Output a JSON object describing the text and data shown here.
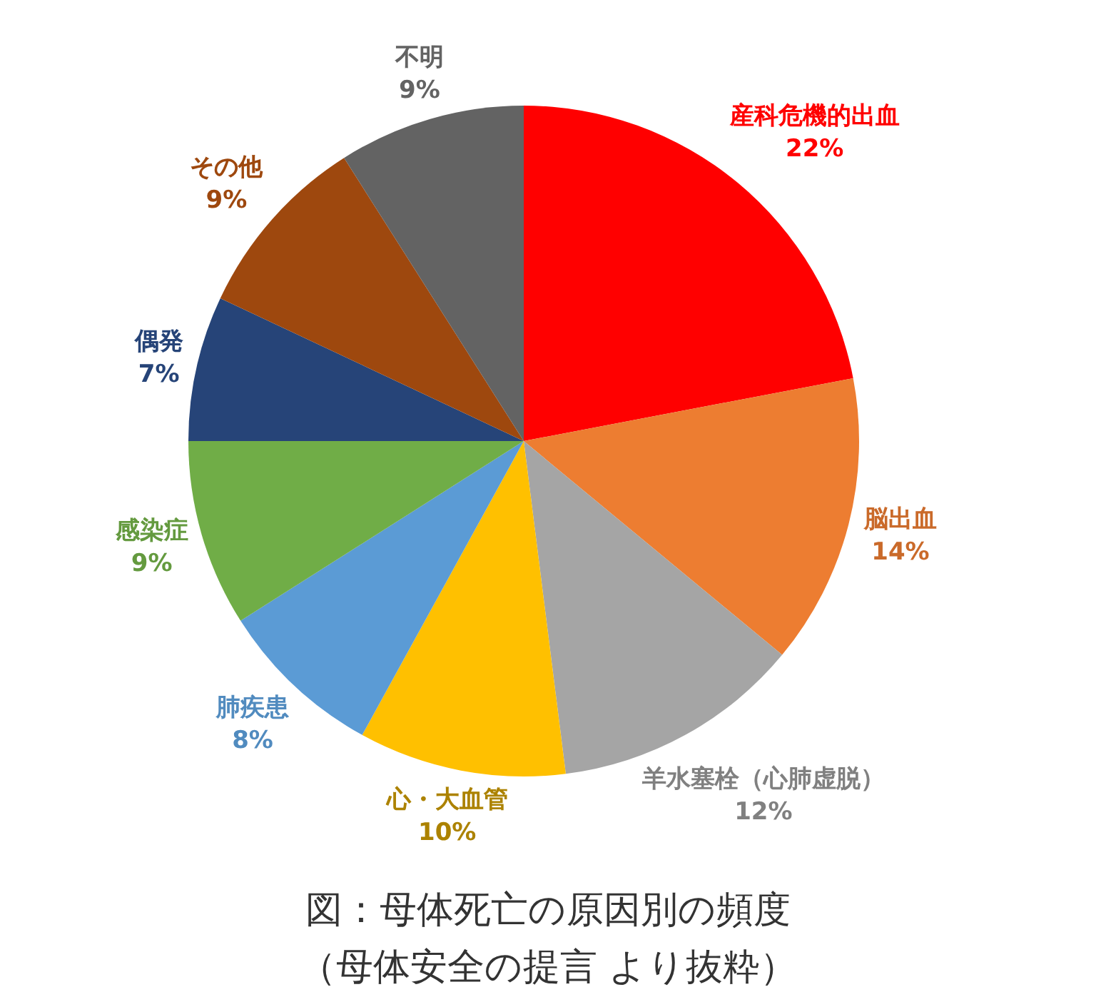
{
  "chart_data": {
    "type": "pie",
    "title": "図：母体死亡の原因別の頻度",
    "annotations": [
      "（母体安全の提言 より抜粋）"
    ],
    "categories": [
      "産科危機的出血",
      "脳出血",
      "羊水塞栓（心肺虚脱）",
      "心・大血管",
      "肺疾患",
      "感染症",
      "偶発",
      "その他",
      "不明"
    ],
    "values": [
      22,
      14,
      12,
      10,
      8,
      9,
      7,
      9,
      9
    ],
    "value_labels": [
      "22%",
      "14%",
      "12%",
      "10%",
      "8%",
      "9%",
      "7%",
      "9%",
      "9%"
    ],
    "colors": [
      "#ff0000",
      "#ed7d31",
      "#a5a5a5",
      "#ffc000",
      "#5b9bd5",
      "#70ad47",
      "#264478",
      "#9e480e",
      "#636363"
    ]
  }
}
